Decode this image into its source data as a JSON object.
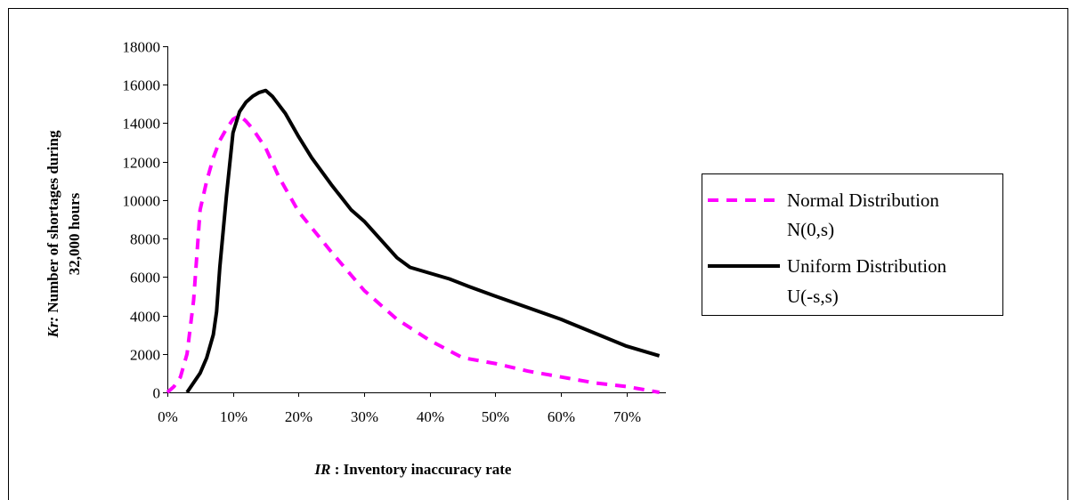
{
  "chart_data": {
    "type": "line",
    "xlabel": {
      "italic": "IR",
      "rest": " : Inventory inaccuracy rate"
    },
    "ylabel": {
      "italic": "Kr:",
      "line1_rest": "  Number of shortages during",
      "line2": "32,000 hours"
    },
    "xlim": [
      0,
      0.76
    ],
    "ylim": [
      0,
      18000
    ],
    "x_ticks": [
      0,
      0.1,
      0.2,
      0.3,
      0.4,
      0.5,
      0.6,
      0.7
    ],
    "x_tick_labels": [
      "0%",
      "10%",
      "20%",
      "30%",
      "40%",
      "50%",
      "60%",
      "70%"
    ],
    "y_ticks": [
      0,
      2000,
      4000,
      6000,
      8000,
      10000,
      12000,
      14000,
      16000,
      18000
    ],
    "y_tick_labels": [
      "0",
      "2000",
      "4000",
      "6000",
      "8000",
      "10000",
      "12000",
      "14000",
      "16000",
      "18000"
    ],
    "grid": false,
    "legend_position": "right",
    "series": [
      {
        "name_line1": "Normal Distribution",
        "name_line2": "N(0,s)",
        "color": "#ff00ff",
        "style": "dashed",
        "x": [
          0,
          0.01,
          0.02,
          0.03,
          0.04,
          0.05,
          0.06,
          0.07,
          0.08,
          0.09,
          0.1,
          0.11,
          0.12,
          0.13,
          0.14,
          0.15,
          0.17,
          0.2,
          0.25,
          0.3,
          0.35,
          0.4,
          0.45,
          0.5,
          0.55,
          0.6,
          0.65,
          0.7,
          0.75
        ],
        "y": [
          0,
          300,
          800,
          2000,
          4800,
          9500,
          11000,
          12200,
          13100,
          13700,
          14200,
          14400,
          14100,
          13700,
          13200,
          12700,
          11200,
          9400,
          7300,
          5300,
          3800,
          2700,
          1800,
          1500,
          1100,
          800,
          500,
          300,
          0
        ]
      },
      {
        "name_line1": "Uniform Distribution",
        "name_line2": "U(-s,s)",
        "color": "#000000",
        "style": "solid",
        "x": [
          0.03,
          0.05,
          0.06,
          0.07,
          0.075,
          0.08,
          0.09,
          0.1,
          0.11,
          0.12,
          0.13,
          0.14,
          0.15,
          0.16,
          0.18,
          0.2,
          0.22,
          0.25,
          0.28,
          0.3,
          0.35,
          0.37,
          0.4,
          0.43,
          0.46,
          0.5,
          0.55,
          0.6,
          0.65,
          0.7,
          0.75
        ],
        "y": [
          0,
          1000,
          1800,
          3000,
          4200,
          6500,
          10200,
          13500,
          14600,
          15100,
          15400,
          15600,
          15700,
          15400,
          14500,
          13300,
          12200,
          10800,
          9500,
          8900,
          7000,
          6500,
          6200,
          5900,
          5500,
          5000,
          4400,
          3800,
          3100,
          2400,
          1900
        ]
      }
    ]
  }
}
